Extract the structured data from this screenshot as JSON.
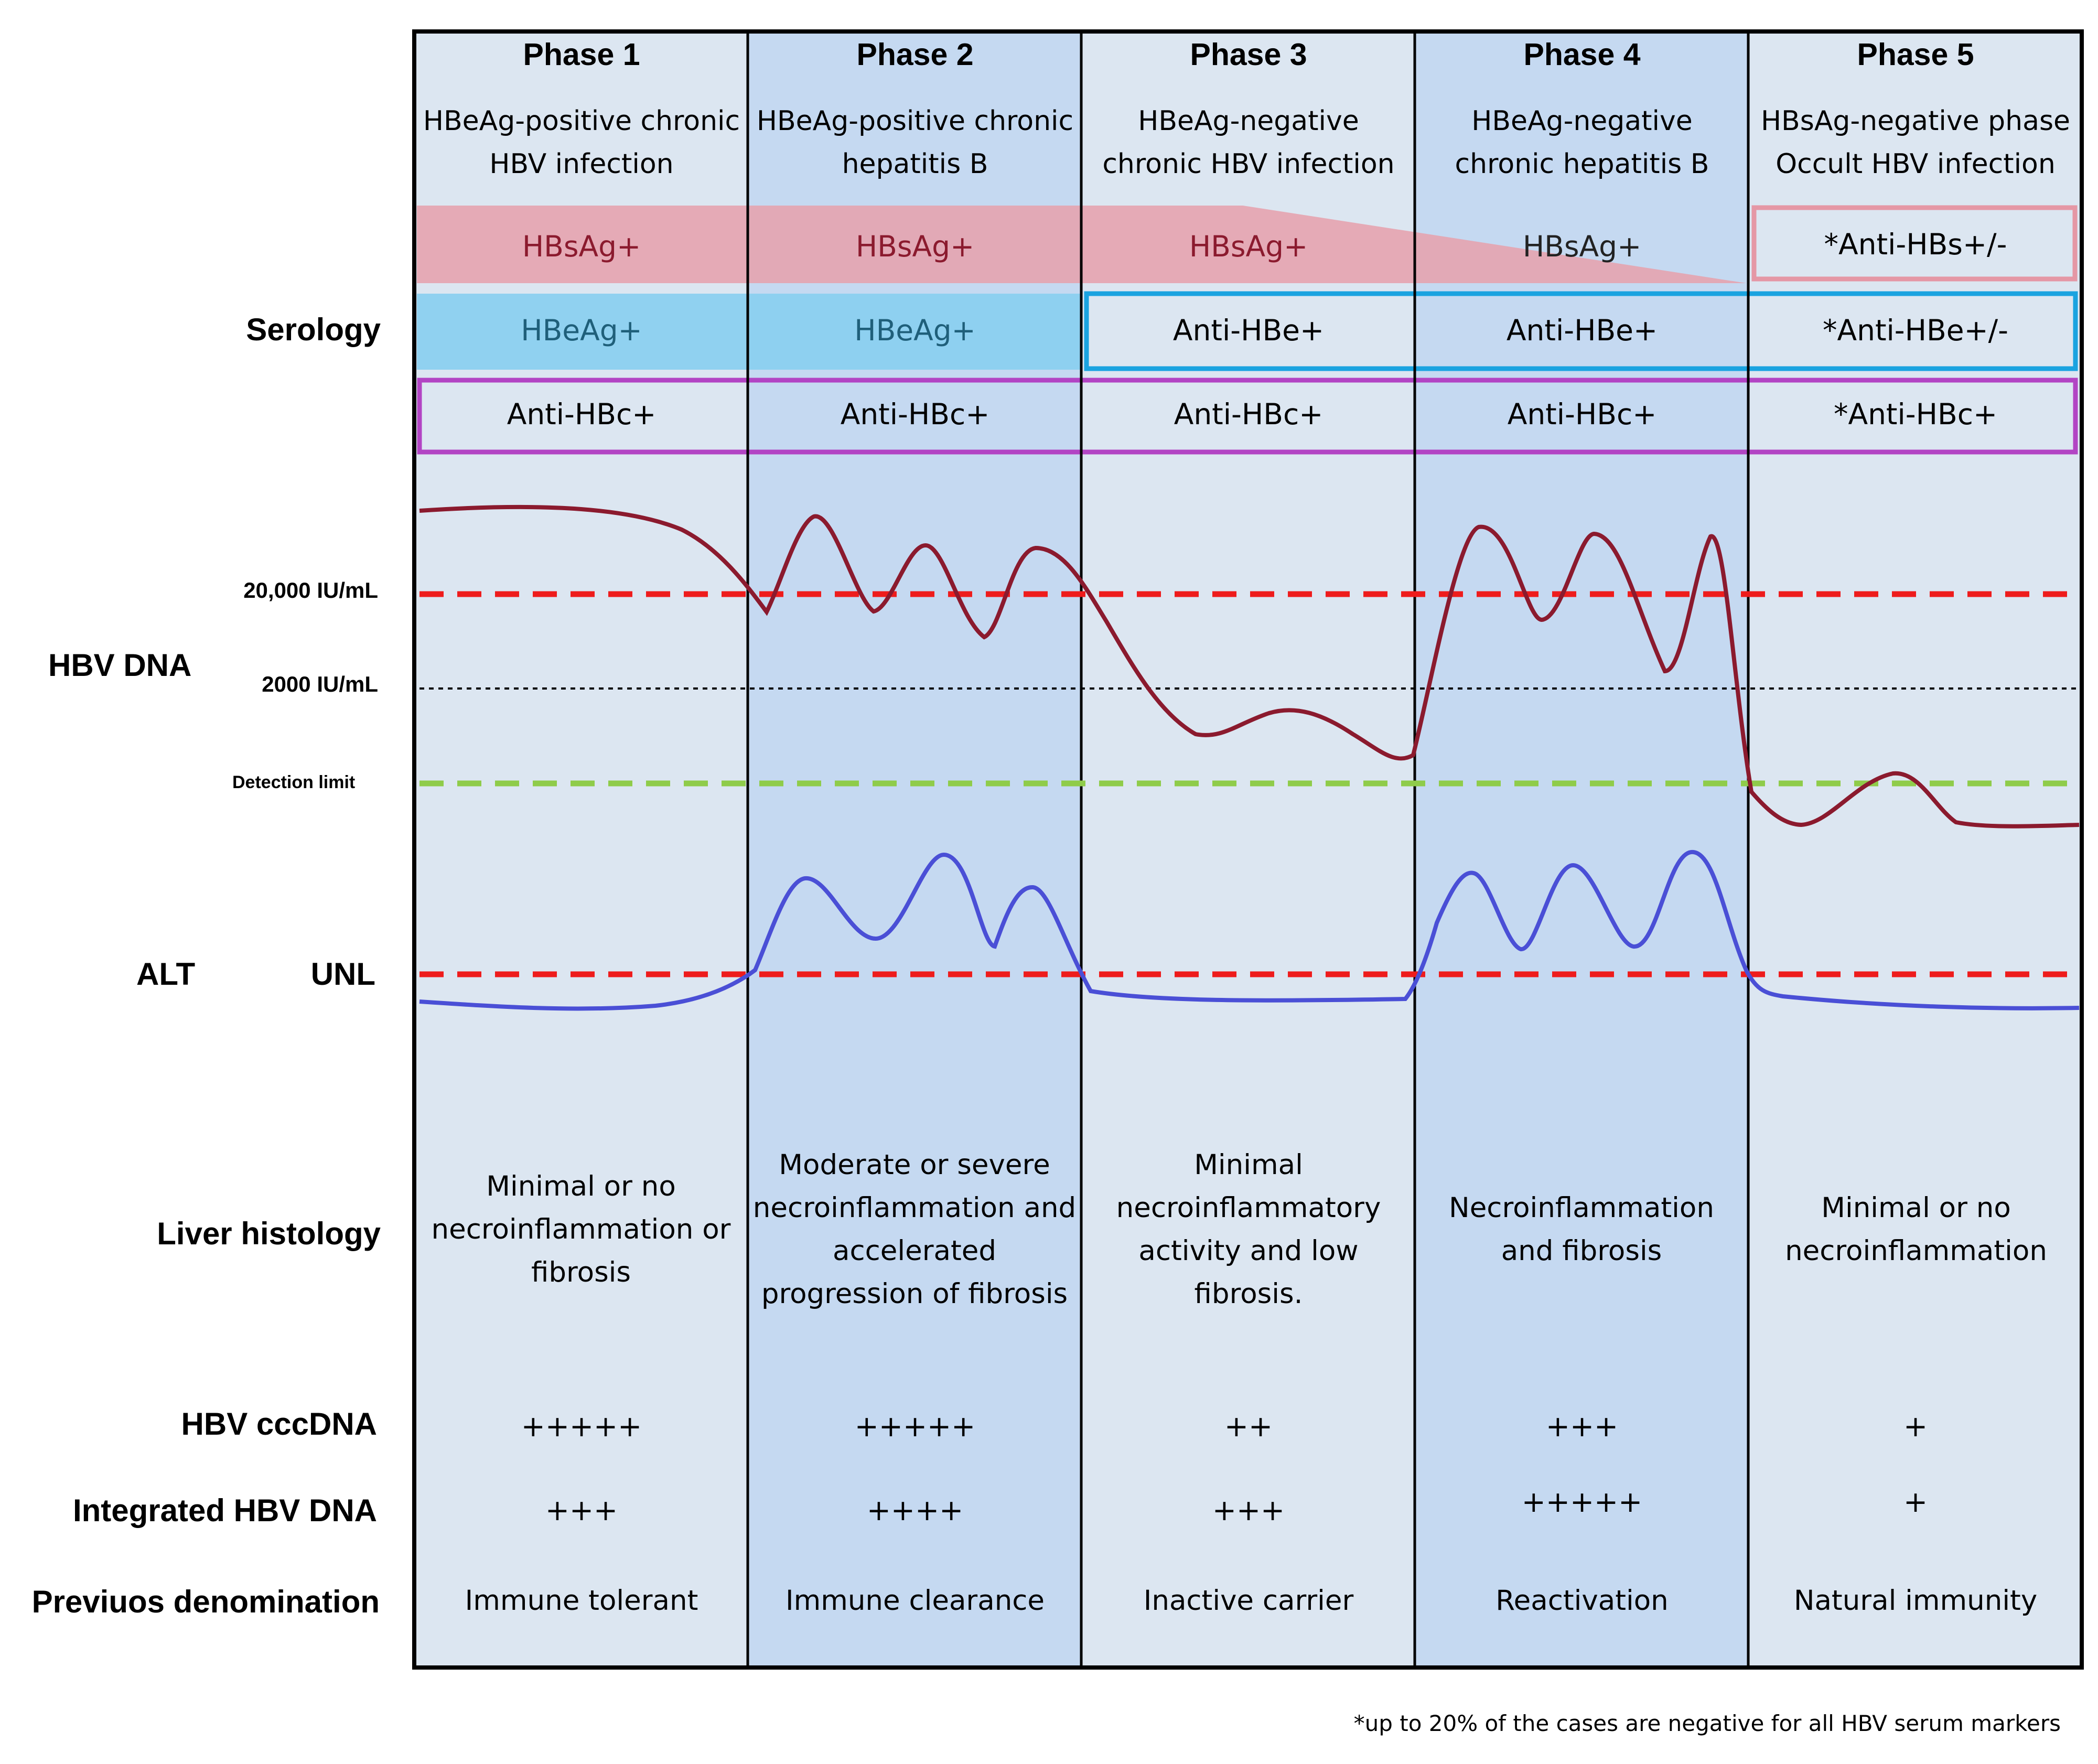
{
  "colors": {
    "phase_odd_bg": "#dce6f1",
    "phase_even_bg": "#c5d9f1",
    "hbsag_fill": "#e6a2ad",
    "hbsag_text": "#8b1a2e",
    "hbeag_fill": "#87cef0",
    "hbeag_text": "#1f5f7a",
    "anti_hbe_border": "#1aa3e0",
    "anti_hbc_border": "#b244c4",
    "anti_hbs_border": "#e597a5",
    "hbv_dna_curve": "#8b1a2e",
    "alt_curve": "#4a4fd6",
    "threshold_red": "#ee1c1c",
    "detection_green": "#8fcc4a"
  },
  "row_labels": {
    "serology": "Serology",
    "hbv_dna": "HBV DNA",
    "alt": "ALT",
    "unl": "UNL",
    "liver_histology": "Liver histology",
    "cccdna": "HBV cccDNA",
    "integrated": "Integrated HBV DNA",
    "previous": "Previuos denomination"
  },
  "dna_thresholds": {
    "high": "20,000 IU/mL",
    "mid": "2000 IU/mL",
    "detection": "Detection limit"
  },
  "phases": [
    {
      "name": "Phase 1",
      "subtitle_1": "HBeAg-positive chronic",
      "subtitle_2": "HBV infection",
      "hbsag": "HBsAg+",
      "hbe": "HBeAg+",
      "anti_hbc": "Anti-HBc+",
      "histology": "Minimal or no necroinflammation or fibrosis",
      "cccdna": "+++++",
      "integrated": "+++",
      "previous": "Immune tolerant"
    },
    {
      "name": "Phase 2",
      "subtitle_1": "HBeAg-positive chronic",
      "subtitle_2": "hepatitis B",
      "hbsag": "HBsAg+",
      "hbe": "HBeAg+",
      "anti_hbc": "Anti-HBc+",
      "histology": "Moderate or severe necroinflammation and accelerated progression of fibrosis",
      "cccdna": "+++++",
      "integrated": "++++",
      "previous": "Immune clearance"
    },
    {
      "name": "Phase 3",
      "subtitle_1": "HBeAg-negative",
      "subtitle_2": "chronic HBV infection",
      "hbsag": "HBsAg+",
      "hbe": "Anti-HBe+",
      "anti_hbc": "Anti-HBc+",
      "histology": "Minimal necroinflammatory activity and low fibrosis.",
      "cccdna": "++",
      "integrated": "+++",
      "previous": "Inactive carrier"
    },
    {
      "name": "Phase 4",
      "subtitle_1": "HBeAg-negative",
      "subtitle_2": "chronic hepatitis B",
      "hbsag": "HBsAg+",
      "hbe": "Anti-HBe+",
      "anti_hbc": "Anti-HBc+",
      "histology": "Necroinflammation and fibrosis",
      "cccdna": "+++",
      "integrated": "+++++",
      "previous": "Reactivation"
    },
    {
      "name": "Phase 5",
      "subtitle_1": "HBsAg-negative phase",
      "subtitle_2": "Occult HBV infection",
      "hbsag": "*Anti-HBs+/-",
      "hbe": "*Anti-HBe+/-",
      "anti_hbc": "*Anti-HBc+",
      "histology": "Minimal or no necroinflammation",
      "cccdna": "+",
      "integrated": "+",
      "previous": "Natural immunity"
    }
  ],
  "footnote": "*up to 20% of the cases are negative for all HBV serum markers"
}
